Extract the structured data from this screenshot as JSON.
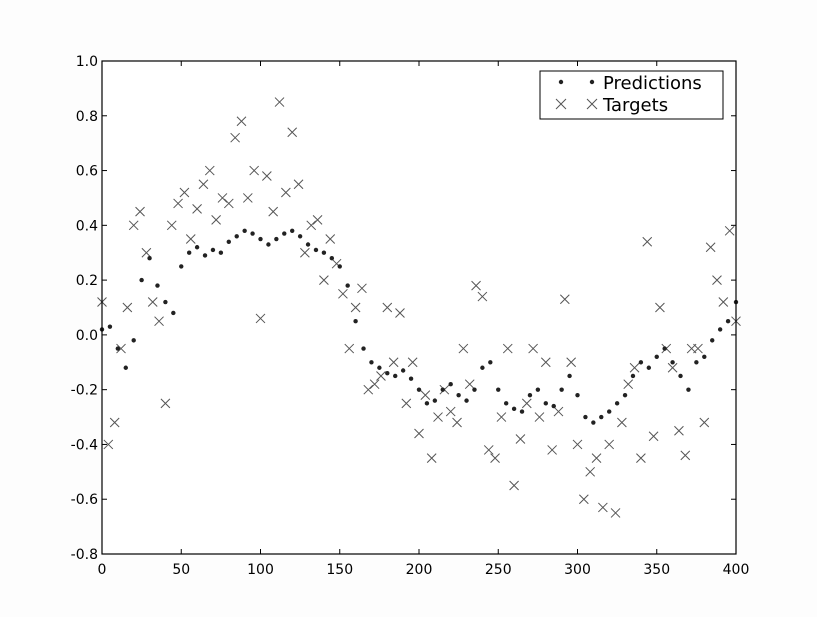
{
  "chart_data": {
    "type": "scatter",
    "title": "",
    "xlabel": "",
    "ylabel": "",
    "xlim": [
      0,
      400
    ],
    "ylim": [
      -0.8,
      1.0
    ],
    "grid": false,
    "legend_position": "top-right",
    "x_ticks": [
      "0",
      "50",
      "100",
      "150",
      "200",
      "250",
      "300",
      "350",
      "400"
    ],
    "y_ticks": [
      "-0.8",
      "-0.6",
      "-0.4",
      "-0.2",
      "0.0",
      "0.2",
      "0.4",
      "0.6",
      "0.8",
      "1.0"
    ],
    "series": [
      {
        "name": "Predictions",
        "marker": "dot",
        "color": "#222222",
        "x": [
          0,
          5,
          10,
          15,
          20,
          25,
          30,
          35,
          40,
          45,
          50,
          55,
          60,
          65,
          70,
          75,
          80,
          85,
          90,
          95,
          100,
          105,
          110,
          115,
          120,
          125,
          130,
          135,
          140,
          145,
          150,
          155,
          160,
          165,
          170,
          175,
          180,
          185,
          190,
          195,
          200,
          205,
          210,
          215,
          220,
          225,
          230,
          235,
          240,
          245,
          250,
          255,
          260,
          265,
          270,
          275,
          280,
          285,
          290,
          295,
          300,
          305,
          310,
          315,
          320,
          325,
          330,
          335,
          340,
          345,
          350,
          355,
          360,
          365,
          370,
          375,
          380,
          385,
          390,
          395,
          400
        ],
        "y": [
          0.02,
          0.03,
          -0.05,
          -0.12,
          -0.02,
          0.2,
          0.28,
          0.18,
          0.12,
          0.08,
          0.25,
          0.3,
          0.32,
          0.29,
          0.31,
          0.3,
          0.34,
          0.36,
          0.38,
          0.37,
          0.35,
          0.33,
          0.35,
          0.37,
          0.38,
          0.36,
          0.33,
          0.31,
          0.3,
          0.28,
          0.25,
          0.18,
          0.05,
          -0.05,
          -0.1,
          -0.12,
          -0.14,
          -0.15,
          -0.13,
          -0.16,
          -0.2,
          -0.25,
          -0.24,
          -0.2,
          -0.18,
          -0.22,
          -0.24,
          -0.2,
          -0.12,
          -0.1,
          -0.2,
          -0.25,
          -0.27,
          -0.28,
          -0.22,
          -0.2,
          -0.25,
          -0.26,
          -0.2,
          -0.15,
          -0.22,
          -0.3,
          -0.32,
          -0.3,
          -0.28,
          -0.25,
          -0.22,
          -0.15,
          -0.1,
          -0.12,
          -0.08,
          -0.05,
          -0.1,
          -0.15,
          -0.2,
          -0.1,
          -0.08,
          -0.02,
          0.02,
          0.05,
          0.12
        ]
      },
      {
        "name": "Targets",
        "marker": "x",
        "color": "#555555",
        "x": [
          0,
          4,
          8,
          12,
          16,
          20,
          24,
          28,
          32,
          36,
          40,
          44,
          48,
          52,
          56,
          60,
          64,
          68,
          72,
          76,
          80,
          84,
          88,
          92,
          96,
          100,
          104,
          108,
          112,
          116,
          120,
          124,
          128,
          132,
          136,
          140,
          144,
          148,
          152,
          156,
          160,
          164,
          168,
          172,
          176,
          180,
          184,
          188,
          192,
          196,
          200,
          204,
          208,
          212,
          216,
          220,
          224,
          228,
          232,
          236,
          240,
          244,
          248,
          252,
          256,
          260,
          264,
          268,
          272,
          276,
          280,
          284,
          288,
          292,
          296,
          300,
          304,
          308,
          312,
          316,
          320,
          324,
          328,
          332,
          336,
          340,
          344,
          348,
          352,
          356,
          360,
          364,
          368,
          372,
          376,
          380,
          384,
          388,
          392,
          396,
          400
        ],
        "y": [
          0.12,
          -0.4,
          -0.32,
          -0.05,
          0.1,
          0.4,
          0.45,
          0.3,
          0.12,
          0.05,
          -0.25,
          0.4,
          0.48,
          0.52,
          0.35,
          0.46,
          0.55,
          0.6,
          0.42,
          0.5,
          0.48,
          0.72,
          0.78,
          0.5,
          0.6,
          0.06,
          0.58,
          0.45,
          0.85,
          0.52,
          0.74,
          0.55,
          0.3,
          0.4,
          0.42,
          0.2,
          0.35,
          0.26,
          0.15,
          -0.05,
          0.1,
          0.17,
          -0.2,
          -0.18,
          -0.15,
          0.1,
          -0.1,
          0.08,
          -0.25,
          -0.1,
          -0.36,
          -0.22,
          -0.45,
          -0.3,
          -0.2,
          -0.28,
          -0.32,
          -0.05,
          -0.18,
          0.18,
          0.14,
          -0.42,
          -0.45,
          -0.3,
          -0.05,
          -0.55,
          -0.38,
          -0.25,
          -0.05,
          -0.3,
          -0.1,
          -0.42,
          -0.28,
          0.13,
          -0.1,
          -0.4,
          -0.6,
          -0.5,
          -0.45,
          -0.63,
          -0.4,
          -0.65,
          -0.32,
          -0.18,
          -0.12,
          -0.45,
          0.34,
          -0.37,
          0.1,
          -0.05,
          -0.12,
          -0.35,
          -0.44,
          -0.05,
          -0.05,
          -0.32,
          0.32,
          0.2,
          0.12,
          0.38,
          0.05
        ]
      }
    ]
  }
}
